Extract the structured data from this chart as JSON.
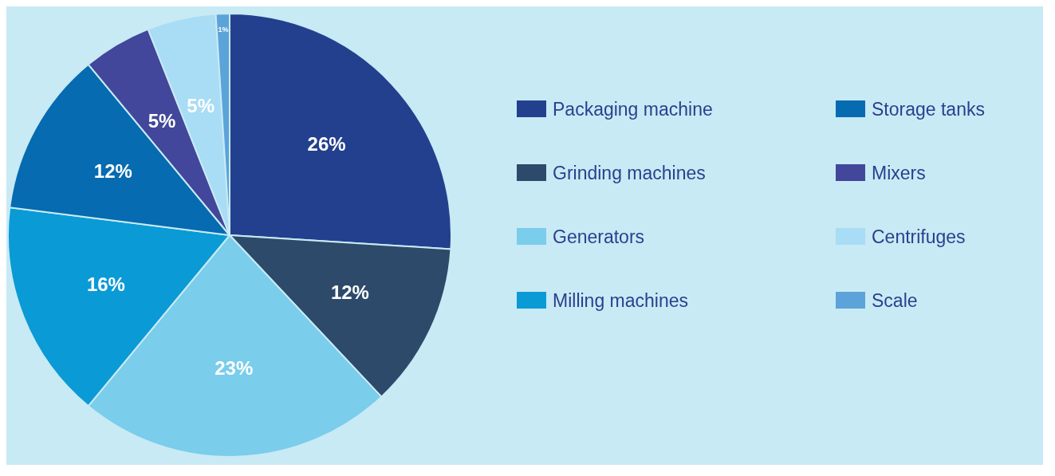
{
  "chart_data": {
    "type": "pie",
    "categories": [
      "Packaging machine",
      "Grinding machines",
      "Generators",
      "Milling machines",
      "Storage tanks",
      "Mixers",
      "Centrifuges",
      "Scale"
    ],
    "values": [
      26,
      12,
      23,
      16,
      12,
      5,
      5,
      1
    ],
    "colors": [
      "#23408e",
      "#2d4a6b",
      "#7acdeb",
      "#0a9ad6",
      "#066bb0",
      "#42479b",
      "#a9dcf5",
      "#5ba3d9"
    ],
    "value_labels": [
      "26%",
      "12%",
      "23%",
      "16%",
      "12%",
      "5%",
      "5%",
      "1%"
    ],
    "legend": "right"
  }
}
